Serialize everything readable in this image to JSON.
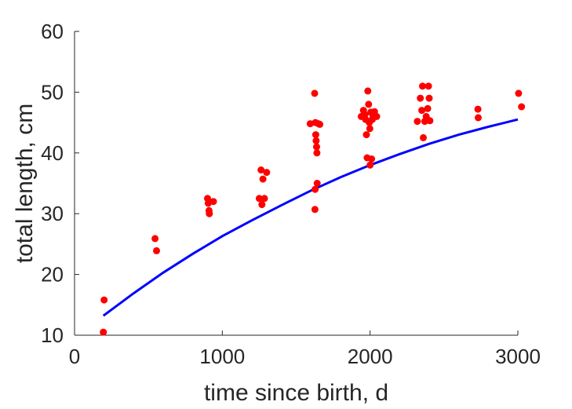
{
  "chart_data": {
    "type": "scatter",
    "title": "",
    "xlabel": "time since birth, d",
    "ylabel": "total length, cm",
    "xlim": [
      0,
      3000
    ],
    "ylim": [
      10,
      60
    ],
    "xticks": [
      0,
      1000,
      2000,
      3000
    ],
    "yticks": [
      10,
      20,
      30,
      40,
      50,
      60
    ],
    "grid": false,
    "series": [
      {
        "kind": "scatter",
        "color": "#ff0000",
        "points": [
          [
            195,
            10.5
          ],
          [
            200,
            15.8
          ],
          [
            545,
            25.9
          ],
          [
            555,
            23.9
          ],
          [
            900,
            32.5
          ],
          [
            905,
            31.7
          ],
          [
            910,
            30.5
          ],
          [
            912,
            30.0
          ],
          [
            940,
            32.0
          ],
          [
            1250,
            32.5
          ],
          [
            1262,
            37.2
          ],
          [
            1268,
            31.5
          ],
          [
            1275,
            35.7
          ],
          [
            1285,
            32.5
          ],
          [
            1300,
            36.8
          ],
          [
            1595,
            44.8
          ],
          [
            1625,
            49.8
          ],
          [
            1630,
            45.0
          ],
          [
            1632,
            43.0
          ],
          [
            1635,
            42.0
          ],
          [
            1638,
            41.0
          ],
          [
            1640,
            40.0
          ],
          [
            1642,
            35.0
          ],
          [
            1628,
            34.0
          ],
          [
            1627,
            30.7
          ],
          [
            1650,
            44.8
          ],
          [
            1660,
            44.7
          ],
          [
            1940,
            46.0
          ],
          [
            1955,
            47.0
          ],
          [
            1965,
            46.3
          ],
          [
            1970,
            45.5
          ],
          [
            1975,
            43.0
          ],
          [
            1980,
            39.2
          ],
          [
            1985,
            50.2
          ],
          [
            1990,
            48.0
          ],
          [
            1995,
            45.0
          ],
          [
            1998,
            44.0
          ],
          [
            2000,
            38.0
          ],
          [
            2005,
            46.7
          ],
          [
            2010,
            39.0
          ],
          [
            2015,
            45.5
          ],
          [
            2020,
            46.0
          ],
          [
            2030,
            46.8
          ],
          [
            2045,
            46.0
          ],
          [
            2320,
            45.2
          ],
          [
            2340,
            49.0
          ],
          [
            2350,
            47.0
          ],
          [
            2355,
            51.0
          ],
          [
            2360,
            42.5
          ],
          [
            2370,
            45.2
          ],
          [
            2380,
            46.0
          ],
          [
            2390,
            47.3
          ],
          [
            2395,
            51.0
          ],
          [
            2400,
            49.0
          ],
          [
            2405,
            45.3
          ],
          [
            2730,
            47.2
          ],
          [
            2732,
            45.8
          ],
          [
            3005,
            49.8
          ],
          [
            3025,
            47.6
          ]
        ]
      },
      {
        "kind": "line",
        "color": "#0000ff",
        "x": [
          195,
          400,
          600,
          800,
          1000,
          1200,
          1400,
          1600,
          1800,
          2000,
          2200,
          2400,
          2600,
          2800,
          3000
        ],
        "y": [
          13.2,
          16.9,
          20.3,
          23.4,
          26.3,
          28.9,
          31.4,
          33.8,
          36.0,
          38.0,
          39.8,
          41.5,
          43.0,
          44.3,
          45.5
        ]
      }
    ]
  }
}
